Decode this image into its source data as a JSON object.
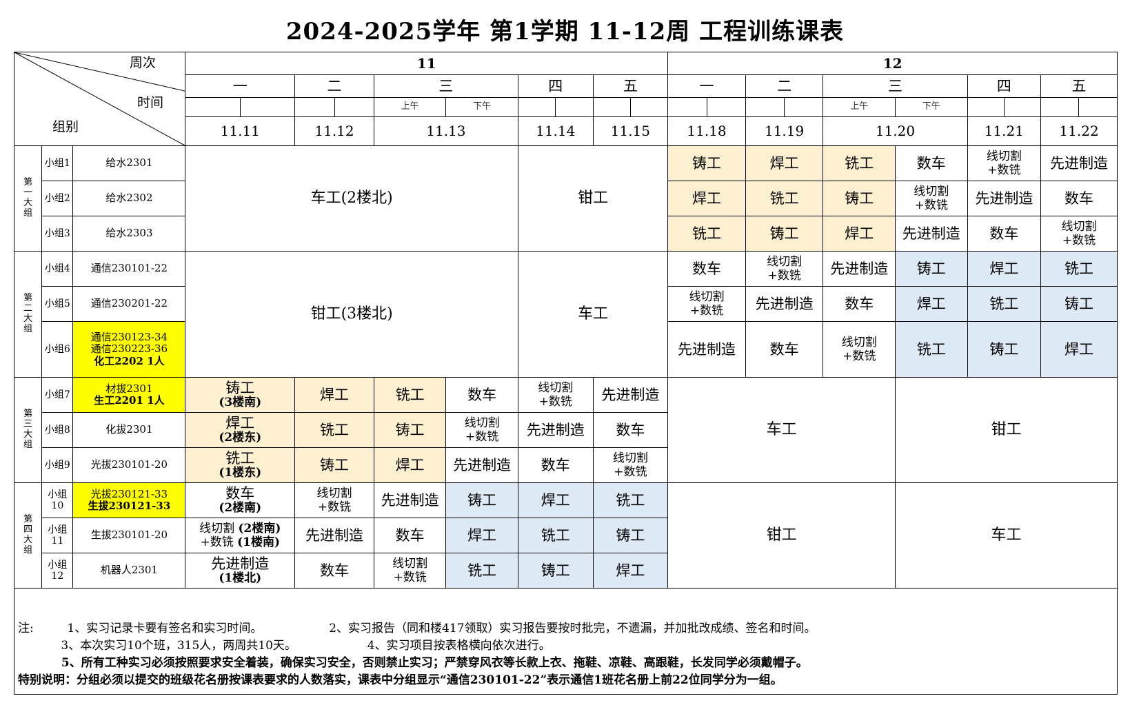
{
  "title": "2024-2025学年  第1学期  11-12周  工程训练课表",
  "header": {
    "week_label": "周次",
    "time_label": "时间",
    "group_label": "组别",
    "weeks": [
      "11",
      "12"
    ],
    "days": [
      "一",
      "二",
      "三",
      "四",
      "五"
    ],
    "am": "上午",
    "pm": "下午",
    "dates_w11": [
      "11.11",
      "11.12",
      "11.13",
      "11.14",
      "11.15"
    ],
    "dates_w12": [
      "11.18",
      "11.19",
      "11.20",
      "11.21",
      "11.22"
    ]
  },
  "big_groups": [
    {
      "label": "第\n一\n大\n组"
    },
    {
      "label": "第\n二\n大\n组"
    },
    {
      "label": "第\n三\n大\n组"
    },
    {
      "label": "第\n四\n大\n组"
    }
  ],
  "groups": [
    {
      "sub": "小组1",
      "cls": "给水2301"
    },
    {
      "sub": "小组2",
      "cls": "给水2302"
    },
    {
      "sub": "小组3",
      "cls": "给水2303"
    },
    {
      "sub": "小组4",
      "cls": "通信230101-22"
    },
    {
      "sub": "小组5",
      "cls": "通信230201-22"
    },
    {
      "sub": "小组6",
      "cls_lines": [
        "通信230123-34",
        "通信230223-36",
        "化工2202    1人"
      ]
    },
    {
      "sub": "小组7",
      "cls_lines": [
        "材拔2301",
        "生工2201  1人"
      ]
    },
    {
      "sub": "小组8",
      "cls": "化拔2301"
    },
    {
      "sub": "小组9",
      "cls": "光拔230101-20"
    },
    {
      "sub": "小组\n10",
      "cls_lines": [
        "光拔230121-33",
        "生拔230121-33"
      ]
    },
    {
      "sub": "小组\n11",
      "cls": "生拔230101-20"
    },
    {
      "sub": "小组\n12",
      "cls": "机器人2301"
    }
  ],
  "merged": {
    "g1_w11_a": "车工(2楼北)",
    "g1_w11_b": "钳工",
    "g2_w11_a": "钳工(3楼北)",
    "g2_w11_b": "车工",
    "g3_w12_a": "车工",
    "g3_w12_b": "钳工",
    "g4_w12_a": "钳工",
    "g4_w12_b": "车工"
  },
  "cells": {
    "r1": [
      "铸工",
      "焊工",
      "铣工",
      "数车",
      "线切割\n+数铣",
      "先进制造"
    ],
    "r2": [
      "焊工",
      "铣工",
      "铸工",
      "线切割\n+数铣",
      "先进制造",
      "数车"
    ],
    "r3": [
      "铣工",
      "铸工",
      "焊工",
      "先进制造",
      "数车",
      "线切割\n+数铣"
    ],
    "r4": [
      "数车",
      "线切割\n+数铣",
      "先进制造",
      "铸工",
      "焊工",
      "铣工"
    ],
    "r5": [
      "线切割\n+数铣",
      "先进制造",
      "数车",
      "焊工",
      "铣工",
      "铸工"
    ],
    "r6": [
      "先进制造",
      "数车",
      "线切割\n+数铣",
      "铣工",
      "铸工",
      "焊工"
    ],
    "r7": [
      "铸工\n(3楼南)",
      "焊工",
      "铣工",
      "数车",
      "线切割\n+数铣",
      "先进制造"
    ],
    "r8": [
      "焊工\n(2楼东)",
      "铣工",
      "铸工",
      "线切割\n+数铣",
      "先进制造",
      "数车"
    ],
    "r9": [
      "铣工\n(1楼东)",
      "铸工",
      "焊工",
      "先进制造",
      "数车",
      "线切割\n+数铣"
    ],
    "r10": [
      "数车\n(2楼南)",
      "线切割\n+数铣",
      "先进制造",
      "铸工",
      "焊工",
      "铣工"
    ],
    "r11": [
      "线切割 (2楼南)\n+数铣 (1楼南)",
      "先进制造",
      "数车",
      "焊工",
      "铣工",
      "铸工"
    ],
    "r12": [
      "先进制造\n(1楼北)",
      "数车",
      "线切割\n+数铣",
      "铣工",
      "铸工",
      "焊工"
    ]
  },
  "notes": {
    "n_prefix": "注:",
    "n1": "1、实习记录卡要有签名和实习时间。",
    "n2": "2、实习报告（同和楼417领取）实习报告要按时批完，不遗漏，并加批改成绩、签名和时间。",
    "n3": "3、本次实习10个班，315人，两周共10天。",
    "n4": "4、实习项目按表格横向依次进行。",
    "n5": "5、所有工种实习必须按照要求安全着装，确保实习安全，否则禁止实习；严禁穿风衣等长款上衣、拖鞋、凉鞋、高跟鞋，长发同学必须戴帽子。",
    "special": "特别说明：分组必须以提交的班级花名册按课表要求的人数落实，课表中分组显示“通信230101-22”表示通信1班花名册上前22位同学分为一组。"
  },
  "colors": {
    "yellow": "#ffff00",
    "tan": "#fdf0d0",
    "blue": "#dde9f4"
  }
}
